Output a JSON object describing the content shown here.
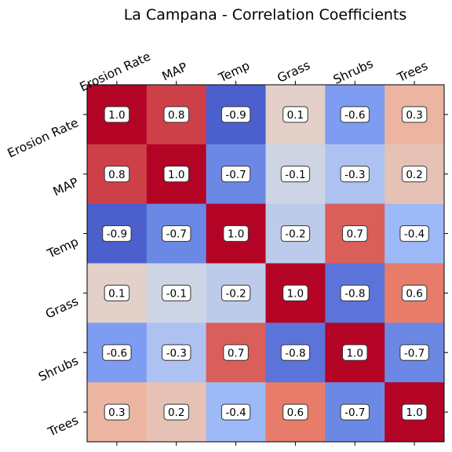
{
  "chart_data": {
    "type": "heatmap",
    "title": "La Campana - Correlation Coefficients",
    "xlabel": "",
    "ylabel": "",
    "categories": [
      "Erosion Rate",
      "MAP",
      "Temp",
      "Grass",
      "Shrubs",
      "Trees"
    ],
    "values": [
      [
        1.0,
        0.8,
        -0.9,
        0.1,
        -0.6,
        0.3
      ],
      [
        0.8,
        1.0,
        -0.7,
        -0.1,
        -0.3,
        0.2
      ],
      [
        -0.9,
        -0.7,
        1.0,
        -0.2,
        0.7,
        -0.4
      ],
      [
        0.1,
        -0.1,
        -0.2,
        1.0,
        -0.8,
        0.6
      ],
      [
        -0.6,
        -0.3,
        0.7,
        -0.8,
        1.0,
        -0.7
      ],
      [
        0.3,
        0.2,
        -0.4,
        0.6,
        -0.7,
        1.0
      ]
    ],
    "value_labels": [
      [
        "1.0",
        "0.8",
        "-0.9",
        "0.1",
        "-0.6",
        "0.3"
      ],
      [
        "0.8",
        "1.0",
        "-0.7",
        "-0.1",
        "-0.3",
        "0.2"
      ],
      [
        "-0.9",
        "-0.7",
        "1.0",
        "-0.2",
        "0.7",
        "-0.4"
      ],
      [
        "0.1",
        "-0.1",
        "-0.2",
        "1.0",
        "-0.8",
        "0.6"
      ],
      [
        "-0.6",
        "-0.3",
        "0.7",
        "-0.8",
        "1.0",
        "-0.7"
      ],
      [
        "0.3",
        "0.2",
        "-0.4",
        "0.6",
        "-0.7",
        "1.0"
      ]
    ],
    "colormap": "coolwarm",
    "vmin": -1.0,
    "vmax": 1.0,
    "x_tick_position": "top",
    "label_rotation_degrees": 25,
    "grid": false
  }
}
